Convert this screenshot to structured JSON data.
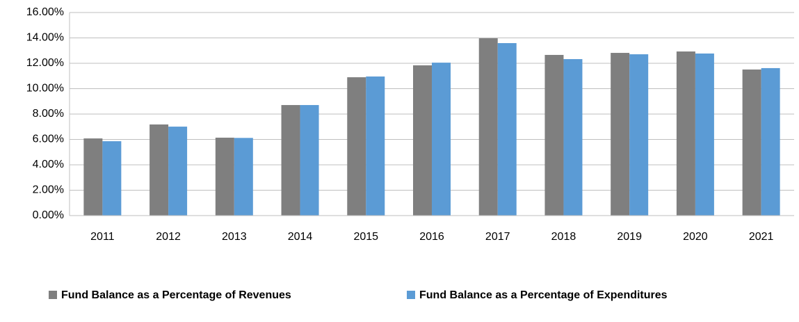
{
  "chart_data": {
    "type": "bar",
    "categories": [
      "2011",
      "2012",
      "2013",
      "2014",
      "2015",
      "2016",
      "2017",
      "2018",
      "2019",
      "2020",
      "2021"
    ],
    "series": [
      {
        "name": "Fund Balance as a Percentage of Revenues",
        "color": "#7f7f7f",
        "values": [
          6.08,
          7.18,
          6.14,
          8.71,
          10.9,
          11.84,
          13.97,
          12.66,
          12.82,
          12.93,
          11.51
        ]
      },
      {
        "name": "Fund Balance as a Percentage of Expenditures",
        "color": "#5b9bd5",
        "values": [
          5.86,
          7.01,
          6.12,
          8.71,
          10.96,
          12.05,
          13.59,
          12.33,
          12.71,
          12.77,
          11.62
        ]
      }
    ],
    "ylim": [
      0,
      16
    ],
    "yticks": [
      {
        "value": 0,
        "label": "0.00%"
      },
      {
        "value": 2,
        "label": "2.00%"
      },
      {
        "value": 4,
        "label": "4.00%"
      },
      {
        "value": 6,
        "label": "6.00%"
      },
      {
        "value": 8,
        "label": "8.00%"
      },
      {
        "value": 10,
        "label": "10.00%"
      },
      {
        "value": 12,
        "label": "12.00%"
      },
      {
        "value": 14,
        "label": "14.00%"
      },
      {
        "value": 16,
        "label": "16.00%"
      }
    ],
    "grid": true,
    "legend": "bottom"
  }
}
